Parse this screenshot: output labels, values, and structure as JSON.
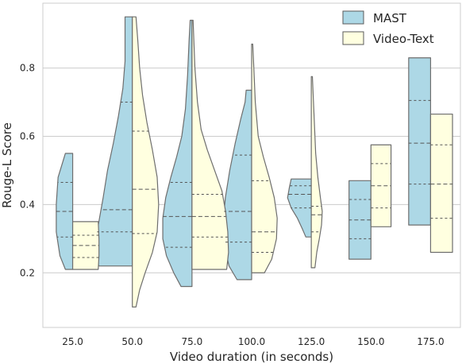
{
  "chart_data": {
    "type": "violin",
    "split": true,
    "xlabel": "Video duration (in seconds)",
    "ylabel": "Rouge-L Score",
    "categories": [
      "25.0",
      "50.0",
      "75.0",
      "100.0",
      "125.0",
      "150.0",
      "175.0"
    ],
    "ylim": [
      0.04,
      0.99
    ],
    "yticks": [
      "0.2",
      "0.4",
      "0.6",
      "0.8"
    ],
    "grid": true,
    "legend_position": "top-right",
    "series": [
      {
        "name": "MAST",
        "color": "#add8e6",
        "violins": [
          {
            "min": 0.21,
            "max": 0.55,
            "quartiles": [
              0.305,
              0.38,
              0.465
            ],
            "profile": [
              [
                0.21,
                0.2
              ],
              [
                0.25,
                0.35
              ],
              [
                0.32,
                0.45
              ],
              [
                0.4,
                0.45
              ],
              [
                0.48,
                0.4
              ],
              [
                0.55,
                0.2
              ]
            ]
          },
          {
            "min": 0.22,
            "max": 0.95,
            "quartiles": [
              0.32,
              0.385,
              0.7
            ],
            "profile": [
              [
                0.22,
                0.92
              ],
              [
                0.26,
                1.0
              ],
              [
                0.31,
                0.98
              ],
              [
                0.36,
                0.9
              ],
              [
                0.42,
                0.8
              ],
              [
                0.5,
                0.68
              ],
              [
                0.58,
                0.52
              ],
              [
                0.66,
                0.38
              ],
              [
                0.74,
                0.26
              ],
              [
                0.82,
                0.2
              ],
              [
                0.9,
                0.2
              ],
              [
                0.95,
                0.2
              ]
            ]
          },
          {
            "min": 0.16,
            "max": 0.94,
            "quartiles": [
              0.275,
              0.365,
              0.465
            ],
            "profile": [
              [
                0.16,
                0.3
              ],
              [
                0.2,
                0.5
              ],
              [
                0.25,
                0.7
              ],
              [
                0.3,
                0.8
              ],
              [
                0.36,
                0.8
              ],
              [
                0.42,
                0.72
              ],
              [
                0.48,
                0.58
              ],
              [
                0.54,
                0.42
              ],
              [
                0.6,
                0.28
              ],
              [
                0.68,
                0.18
              ],
              [
                0.78,
                0.12
              ],
              [
                0.88,
                0.08
              ],
              [
                0.94,
                0.05
              ]
            ]
          },
          {
            "min": 0.18,
            "max": 0.735,
            "quartiles": [
              0.29,
              0.38,
              0.545
            ],
            "profile": [
              [
                0.18,
                0.4
              ],
              [
                0.22,
                0.62
              ],
              [
                0.28,
                0.75
              ],
              [
                0.35,
                0.78
              ],
              [
                0.42,
                0.72
              ],
              [
                0.5,
                0.6
              ],
              [
                0.58,
                0.45
              ],
              [
                0.65,
                0.3
              ],
              [
                0.7,
                0.18
              ],
              [
                0.735,
                0.15
              ]
            ]
          },
          {
            "min": 0.305,
            "max": 0.475,
            "quartiles": [
              0.39,
              0.43,
              0.455
            ],
            "profile": [
              [
                0.305,
                0.15
              ],
              [
                0.33,
                0.25
              ],
              [
                0.36,
                0.38
              ],
              [
                0.39,
                0.55
              ],
              [
                0.42,
                0.65
              ],
              [
                0.45,
                0.6
              ],
              [
                0.475,
                0.55
              ]
            ]
          },
          {
            "min": 0.24,
            "max": 0.47,
            "quartiles": [
              0.3,
              0.355,
              0.415
            ],
            "profile": [
              [
                0.24,
                0.6
              ],
              [
                0.3,
                0.6
              ],
              [
                0.36,
                0.6
              ],
              [
                0.42,
                0.6
              ],
              [
                0.47,
                0.6
              ]
            ]
          },
          {
            "min": 0.34,
            "max": 0.83,
            "quartiles": [
              0.46,
              0.58,
              0.705
            ],
            "profile": [
              [
                0.34,
                0.6
              ],
              [
                0.45,
                0.6
              ],
              [
                0.55,
                0.6
              ],
              [
                0.65,
                0.6
              ],
              [
                0.75,
                0.6
              ],
              [
                0.83,
                0.6
              ]
            ]
          }
        ]
      },
      {
        "name": "Video-Text",
        "color": "#ffffe0",
        "violins": [
          {
            "min": 0.21,
            "max": 0.35,
            "quartiles": [
              0.245,
              0.28,
              0.31
            ],
            "profile": [
              [
                0.21,
                0.7
              ],
              [
                0.25,
                0.72
              ],
              [
                0.3,
                0.72
              ],
              [
                0.35,
                0.7
              ]
            ]
          },
          {
            "min": 0.1,
            "max": 0.95,
            "quartiles": [
              0.315,
              0.445,
              0.615
            ],
            "profile": [
              [
                0.1,
                0.1
              ],
              [
                0.15,
                0.2
              ],
              [
                0.2,
                0.35
              ],
              [
                0.26,
                0.55
              ],
              [
                0.32,
                0.68
              ],
              [
                0.4,
                0.72
              ],
              [
                0.48,
                0.68
              ],
              [
                0.56,
                0.55
              ],
              [
                0.64,
                0.4
              ],
              [
                0.72,
                0.28
              ],
              [
                0.8,
                0.2
              ],
              [
                0.88,
                0.15
              ],
              [
                0.95,
                0.1
              ]
            ]
          },
          {
            "min": 0.21,
            "max": 0.94,
            "quartiles": [
              0.305,
              0.365,
              0.43
            ],
            "profile": [
              [
                0.21,
                0.95
              ],
              [
                0.26,
                1.0
              ],
              [
                0.32,
                0.98
              ],
              [
                0.38,
                0.92
              ],
              [
                0.44,
                0.82
              ],
              [
                0.5,
                0.62
              ],
              [
                0.56,
                0.42
              ],
              [
                0.62,
                0.25
              ],
              [
                0.7,
                0.15
              ],
              [
                0.8,
                0.08
              ],
              [
                0.94,
                0.03
              ]
            ]
          },
          {
            "min": 0.2,
            "max": 0.87,
            "quartiles": [
              0.26,
              0.32,
              0.47
            ],
            "profile": [
              [
                0.2,
                0.35
              ],
              [
                0.24,
                0.55
              ],
              [
                0.3,
                0.68
              ],
              [
                0.36,
                0.7
              ],
              [
                0.42,
                0.62
              ],
              [
                0.48,
                0.48
              ],
              [
                0.54,
                0.32
              ],
              [
                0.6,
                0.18
              ],
              [
                0.7,
                0.1
              ],
              [
                0.8,
                0.06
              ],
              [
                0.87,
                0.03
              ]
            ]
          },
          {
            "min": 0.215,
            "max": 0.775,
            "quartiles": [
              0.32,
              0.37,
              0.395
            ],
            "profile": [
              [
                0.215,
                0.1
              ],
              [
                0.26,
                0.15
              ],
              [
                0.3,
                0.22
              ],
              [
                0.34,
                0.28
              ],
              [
                0.38,
                0.3
              ],
              [
                0.42,
                0.25
              ],
              [
                0.48,
                0.18
              ],
              [
                0.55,
                0.12
              ],
              [
                0.65,
                0.08
              ],
              [
                0.775,
                0.03
              ]
            ]
          },
          {
            "min": 0.335,
            "max": 0.575,
            "quartiles": [
              0.39,
              0.455,
              0.52
            ],
            "profile": [
              [
                0.335,
                0.55
              ],
              [
                0.4,
                0.55
              ],
              [
                0.46,
                0.55
              ],
              [
                0.52,
                0.55
              ],
              [
                0.575,
                0.55
              ]
            ]
          },
          {
            "min": 0.26,
            "max": 0.665,
            "quartiles": [
              0.36,
              0.46,
              0.575
            ],
            "profile": [
              [
                0.26,
                0.6
              ],
              [
                0.36,
                0.6
              ],
              [
                0.46,
                0.6
              ],
              [
                0.56,
                0.6
              ],
              [
                0.665,
                0.6
              ]
            ]
          }
        ]
      }
    ]
  }
}
